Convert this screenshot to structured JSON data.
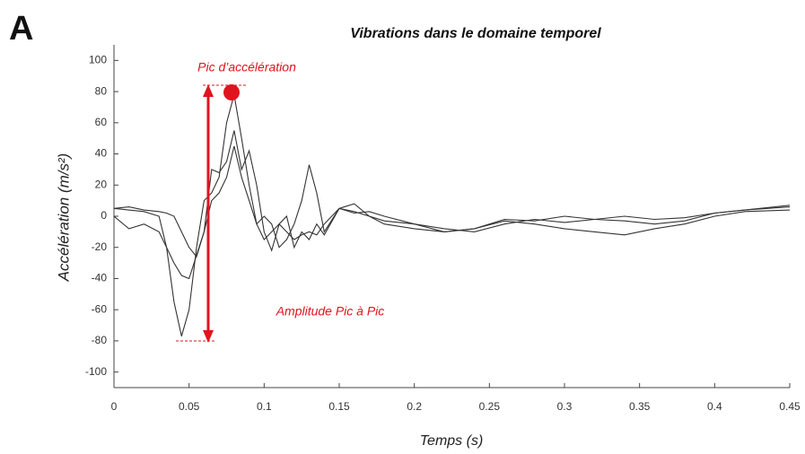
{
  "panel_label": "A",
  "chart_data": {
    "type": "line",
    "title": "Vibrations dans le domaine temporel",
    "x_label": "Temps (s)",
    "y_label": "Accélération (m/s²)",
    "annotations": [
      "Pic d’accélération",
      "Amplitude Pic à Pic"
    ],
    "x": [
      0,
      0.01,
      0.02,
      0.03,
      0.035,
      0.04,
      0.045,
      0.05,
      0.055,
      0.06,
      0.065,
      0.07,
      0.075,
      0.08,
      0.085,
      0.09,
      0.095,
      0.1,
      0.105,
      0.11,
      0.115,
      0.12,
      0.125,
      0.13,
      0.135,
      0.14,
      0.15,
      0.16,
      0.17,
      0.18,
      0.2,
      0.22,
      0.24,
      0.26,
      0.28,
      0.3,
      0.32,
      0.34,
      0.36,
      0.38,
      0.4,
      0.42,
      0.45
    ],
    "series": [
      {
        "color": "#333333",
        "values": [
          5,
          4,
          3,
          0,
          -20,
          -55,
          -77,
          -60,
          -20,
          10,
          15,
          25,
          60,
          78,
          50,
          20,
          -5,
          -15,
          -10,
          -5,
          -10,
          -15,
          -12,
          -10,
          -12,
          -5,
          5,
          3,
          0,
          -3,
          -5,
          -8,
          -10,
          -5,
          -2,
          -4,
          -2,
          0,
          -2,
          -1,
          2,
          4,
          6
        ]
      },
      {
        "color": "#333333",
        "values": [
          0,
          -8,
          -5,
          -10,
          -20,
          -30,
          -38,
          -40,
          -25,
          -10,
          30,
          28,
          35,
          55,
          30,
          42,
          20,
          -10,
          -22,
          -5,
          0,
          -20,
          -10,
          -15,
          -5,
          -12,
          5,
          8,
          0,
          -5,
          -8,
          -10,
          -8,
          -3,
          -5,
          -8,
          -10,
          -12,
          -8,
          -5,
          0,
          3,
          4
        ]
      },
      {
        "color": "#333333",
        "values": [
          5,
          6,
          4,
          3,
          2,
          0,
          -10,
          -20,
          -26,
          -10,
          10,
          15,
          25,
          45,
          25,
          10,
          -5,
          0,
          -5,
          -20,
          -15,
          -5,
          10,
          33,
          15,
          -10,
          5,
          2,
          3,
          0,
          -5,
          -10,
          -8,
          -2,
          -3,
          0,
          -2,
          -3,
          -5,
          -3,
          2,
          4,
          7
        ]
      }
    ],
    "xlim": [
      0,
      0.45
    ],
    "ylim": [
      -110,
      110
    ],
    "xticks": [
      0,
      0.05,
      0.1,
      0.15,
      0.2,
      0.25,
      0.3,
      0.35,
      0.4,
      0.45
    ],
    "yticks": [
      -100,
      -80,
      -60,
      -40,
      -20,
      0,
      20,
      40,
      60,
      80,
      100
    ],
    "grid": false
  }
}
